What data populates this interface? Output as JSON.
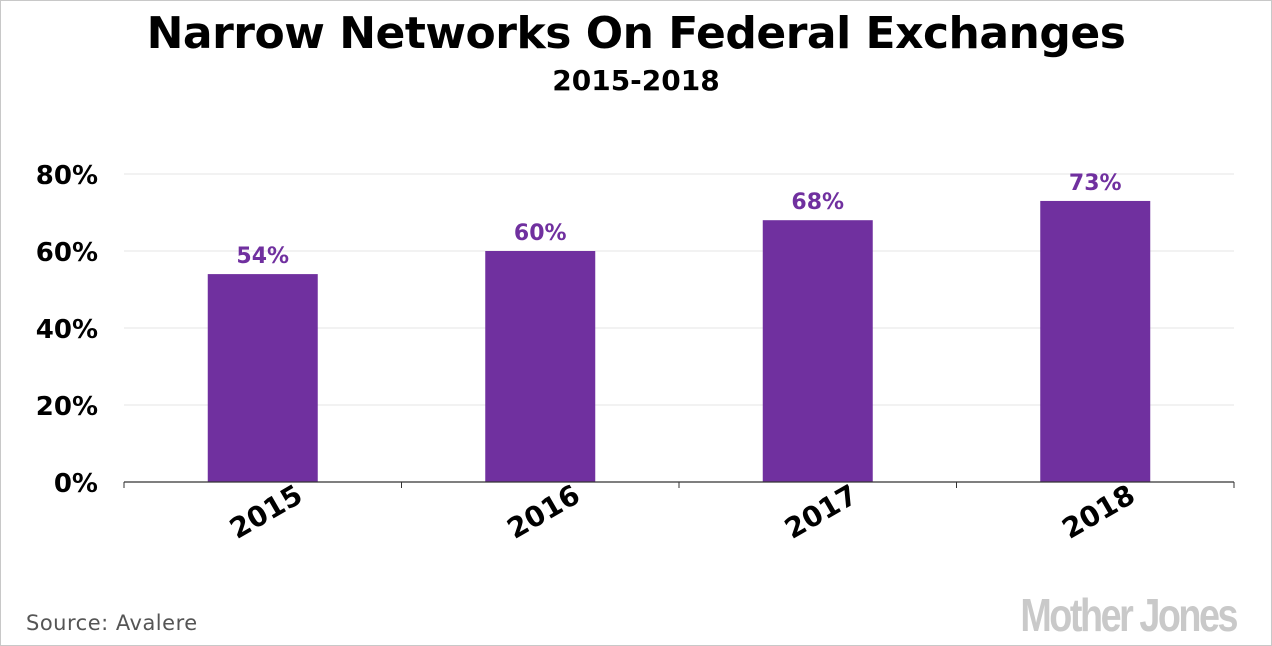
{
  "chart_data": {
    "type": "bar",
    "title": "Narrow Networks On Federal Exchanges",
    "subtitle": "2015-2018",
    "categories": [
      "2015",
      "2016",
      "2017",
      "2018"
    ],
    "values": [
      54,
      60,
      68,
      73
    ],
    "value_labels": [
      "54%",
      "60%",
      "68%",
      "73%"
    ],
    "ylim": [
      0,
      80
    ],
    "yticks": [
      0,
      20,
      40,
      60,
      80
    ],
    "ytick_labels": [
      "0%",
      "20%",
      "40%",
      "60%",
      "80%"
    ],
    "grid": true,
    "bar_color": "#70309f",
    "label_color": "#70309f"
  },
  "source": "Source:  Avalere",
  "logo": "Mother Jones"
}
